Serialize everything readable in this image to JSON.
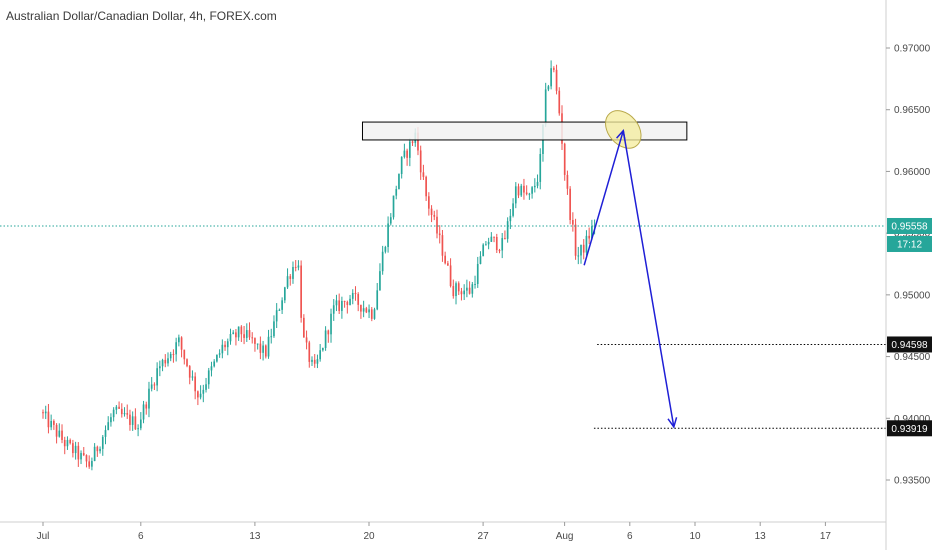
{
  "title": "Australian Dollar/Canadian Dollar, 4h, FOREX.com",
  "colors": {
    "up": "#26a69a",
    "down": "#ef5350",
    "grid": "#d9d9d9",
    "current_line": "#26a69a",
    "arrow": "#1f1fd6",
    "box_fill": "#f2f2f2",
    "box_stroke": "#000000",
    "ellipse_fill": "#f4ec9c",
    "ellipse_stroke": "#b9a94b",
    "tag_dark": "#111111",
    "tag_green": "#26a69a"
  },
  "chart_data": {
    "type": "candlestick",
    "title": "Australian Dollar/Canadian Dollar, 4h, FOREX.com",
    "timeframe": "4h",
    "x_tick_labels": [
      "Jul",
      "6",
      "13",
      "20",
      "27",
      "Aug",
      "6",
      "10",
      "13",
      "17"
    ],
    "x_tick_days": [
      0,
      6,
      13,
      20,
      27,
      32,
      36,
      40,
      44,
      48
    ],
    "y_tick_labels": [
      "0.97000",
      "0.96500",
      "0.96000",
      "0.95500",
      "0.95000",
      "0.94500",
      "0.94000",
      "0.93500"
    ],
    "ylim": [
      0.9318,
      0.9745
    ],
    "grid": true,
    "price_tags": [
      {
        "label": "0.95558",
        "value": 0.95558,
        "style": "green"
      },
      {
        "label": "17:12",
        "value": 0.95558,
        "style": "green_sub"
      },
      {
        "label": "0.94598",
        "value": 0.94598,
        "style": "dark"
      },
      {
        "label": "0.93919",
        "value": 0.93919,
        "style": "dark"
      }
    ],
    "current_price": 0.95558,
    "drawings": {
      "resistance_zone": {
        "y_top": 0.964,
        "y_bottom": 0.96255,
        "x_start_day": 19.6,
        "x_end_day": 39.5
      },
      "target_levels": [
        {
          "value": 0.94598,
          "x_start_day": 34.0
        },
        {
          "value": 0.93919,
          "x_start_day": 33.8
        }
      ],
      "arrow_path": [
        {
          "day": 33.2,
          "price": 0.9524
        },
        {
          "day": 35.6,
          "price": 0.9633
        },
        {
          "day": 38.7,
          "price": 0.9393
        }
      ],
      "highlight_ellipse": {
        "day": 35.6,
        "price": 0.9634
      }
    },
    "anchors": [
      {
        "day": 0.0,
        "price": 0.9405
      },
      {
        "day": 1.5,
        "price": 0.938
      },
      {
        "day": 3.0,
        "price": 0.9362
      },
      {
        "day": 4.5,
        "price": 0.9405
      },
      {
        "day": 6.0,
        "price": 0.9395
      },
      {
        "day": 7.2,
        "price": 0.944
      },
      {
        "day": 8.5,
        "price": 0.9462
      },
      {
        "day": 9.7,
        "price": 0.9418
      },
      {
        "day": 11.2,
        "price": 0.9458
      },
      {
        "day": 12.3,
        "price": 0.947
      },
      {
        "day": 13.8,
        "price": 0.9452
      },
      {
        "day": 15.2,
        "price": 0.9515
      },
      {
        "day": 15.8,
        "price": 0.953
      },
      {
        "day": 16.1,
        "price": 0.9465
      },
      {
        "day": 16.8,
        "price": 0.9437
      },
      {
        "day": 18.0,
        "price": 0.9488
      },
      {
        "day": 19.0,
        "price": 0.9498
      },
      {
        "day": 20.4,
        "price": 0.9485
      },
      {
        "day": 21.1,
        "price": 0.954
      },
      {
        "day": 22.1,
        "price": 0.9605
      },
      {
        "day": 23.0,
        "price": 0.963
      },
      {
        "day": 23.7,
        "price": 0.9578
      },
      {
        "day": 24.7,
        "price": 0.9535
      },
      {
        "day": 25.3,
        "price": 0.9505
      },
      {
        "day": 26.4,
        "price": 0.9503
      },
      {
        "day": 27.4,
        "price": 0.9545
      },
      {
        "day": 28.4,
        "price": 0.954
      },
      {
        "day": 29.2,
        "price": 0.9588
      },
      {
        "day": 30.0,
        "price": 0.9578
      },
      {
        "day": 30.6,
        "price": 0.9598
      },
      {
        "day": 31.0,
        "price": 0.966
      },
      {
        "day": 31.4,
        "price": 0.969
      },
      {
        "day": 31.9,
        "price": 0.9642
      },
      {
        "day": 32.2,
        "price": 0.9595
      },
      {
        "day": 32.9,
        "price": 0.953
      },
      {
        "day": 33.4,
        "price": 0.954
      },
      {
        "day": 34.0,
        "price": 0.9558
      }
    ],
    "candle_step_days": 0.1667,
    "wick_range": 0.0007
  }
}
